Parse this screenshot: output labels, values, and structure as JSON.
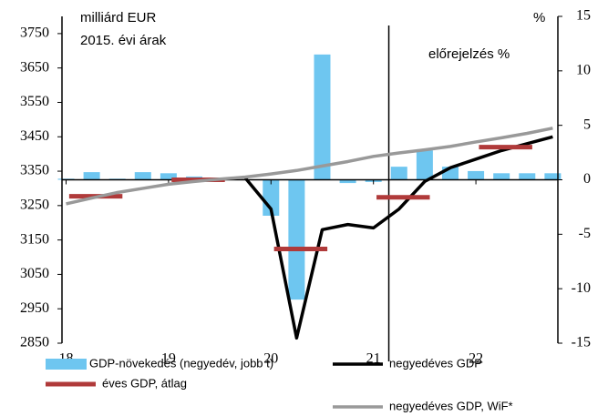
{
  "chart_data": {
    "type": "combo",
    "title": "milliárd EUR",
    "subtitle": "2015. évi árak",
    "y2_label": "%",
    "annotation": "előrejelzés %",
    "forecast_x": 21.15,
    "x": [
      18,
      18.25,
      18.5,
      18.75,
      19,
      19.25,
      19.5,
      19.75,
      20,
      20.25,
      20.5,
      20.75,
      21,
      21.25,
      21.5,
      21.75,
      22,
      22.25,
      22.5,
      22.75
    ],
    "xlim": [
      17.96,
      22.8
    ],
    "xticks": [
      18,
      19,
      20,
      21,
      22
    ],
    "ylim": [
      2850,
      3800
    ],
    "yticks": [
      2850,
      2950,
      3050,
      3150,
      3250,
      3350,
      3450,
      3550,
      3650,
      3750
    ],
    "y2lim": [
      -15,
      15
    ],
    "y2ticks": [
      -15,
      -10,
      -5,
      0,
      5,
      10,
      15
    ],
    "series": [
      {
        "name": "GDP-növekedés (negyedév, jobb t)",
        "type": "bar",
        "axis": "y2",
        "color": "#6ec6f0",
        "values": [
          0.1,
          0.7,
          0.1,
          0.7,
          0.6,
          0.3,
          0.2,
          0.0,
          -3.3,
          -11.0,
          11.5,
          -0.3,
          -0.2,
          1.2,
          2.7,
          1.2,
          0.8,
          0.6,
          0.6,
          0.6
        ]
      },
      {
        "name": "negyedéves GDP",
        "type": "line",
        "color": "#000000",
        "values": [
          null,
          null,
          null,
          null,
          null,
          null,
          null,
          3330,
          3240,
          2865,
          3180,
          3195,
          3185,
          3240,
          3320,
          3360,
          3385,
          3410,
          3430,
          3450
        ]
      },
      {
        "name": "éves GDP, átlag",
        "type": "segment",
        "color": "#b03a3a",
        "x": [
          18,
          19,
          20,
          21,
          22
        ],
        "values": [
          3277,
          3325,
          3124,
          3274,
          3420
        ]
      },
      {
        "name": "negyedéves GDP, WiF*",
        "type": "line",
        "color": "#999999",
        "values": [
          3255,
          3272,
          3288,
          3300,
          3312,
          3320,
          3327,
          3333,
          3342,
          3352,
          3365,
          3378,
          3393,
          3403,
          3412,
          3422,
          3435,
          3447,
          3460,
          3475
        ]
      }
    ]
  }
}
